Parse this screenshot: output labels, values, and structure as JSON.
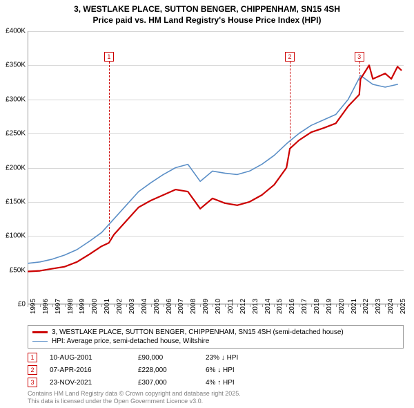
{
  "title_line1": "3, WESTLAKE PLACE, SUTTON BENGER, CHIPPENHAM, SN15 4SH",
  "title_line2": "Price paid vs. HM Land Registry's House Price Index (HPI)",
  "chart": {
    "type": "line",
    "background_color": "#ffffff",
    "grid_color": "#d6d6d6",
    "axis_color": "#9a9a9a",
    "x_years": [
      1995,
      1996,
      1997,
      1998,
      1999,
      2000,
      2001,
      2002,
      2003,
      2004,
      2005,
      2006,
      2007,
      2008,
      2009,
      2010,
      2011,
      2012,
      2013,
      2014,
      2015,
      2016,
      2017,
      2018,
      2019,
      2020,
      2021,
      2022,
      2023,
      2024,
      2025
    ],
    "y_ticks": [
      0,
      50000,
      100000,
      150000,
      200000,
      250000,
      300000,
      350000,
      400000
    ],
    "y_tick_labels": [
      "£0",
      "£50K",
      "£100K",
      "£150K",
      "£200K",
      "£250K",
      "£300K",
      "£350K",
      "£400K"
    ],
    "ylim": [
      0,
      400000
    ],
    "xlim": [
      1995,
      2025.5
    ],
    "series": [
      {
        "name": "hpi",
        "color": "#5b8fc7",
        "stroke_width": 1.6,
        "points": [
          [
            1995,
            60000
          ],
          [
            1996,
            62000
          ],
          [
            1997,
            66000
          ],
          [
            1998,
            72000
          ],
          [
            1999,
            80000
          ],
          [
            2000,
            92000
          ],
          [
            2001,
            105000
          ],
          [
            2002,
            125000
          ],
          [
            2003,
            145000
          ],
          [
            2004,
            165000
          ],
          [
            2005,
            178000
          ],
          [
            2006,
            190000
          ],
          [
            2007,
            200000
          ],
          [
            2008,
            205000
          ],
          [
            2009,
            180000
          ],
          [
            2010,
            195000
          ],
          [
            2011,
            192000
          ],
          [
            2012,
            190000
          ],
          [
            2013,
            195000
          ],
          [
            2014,
            205000
          ],
          [
            2015,
            218000
          ],
          [
            2016,
            235000
          ],
          [
            2017,
            250000
          ],
          [
            2018,
            262000
          ],
          [
            2019,
            270000
          ],
          [
            2020,
            278000
          ],
          [
            2021,
            300000
          ],
          [
            2022,
            335000
          ],
          [
            2023,
            322000
          ],
          [
            2024,
            318000
          ],
          [
            2025,
            322000
          ]
        ]
      },
      {
        "name": "property",
        "color": "#cc0000",
        "stroke_width": 2.2,
        "points": [
          [
            1995,
            48000
          ],
          [
            1996,
            49000
          ],
          [
            1997,
            52000
          ],
          [
            1998,
            55000
          ],
          [
            1999,
            62000
          ],
          [
            2000,
            73000
          ],
          [
            2001,
            85000
          ],
          [
            2001.6,
            90000
          ],
          [
            2002,
            102000
          ],
          [
            2003,
            122000
          ],
          [
            2004,
            142000
          ],
          [
            2005,
            152000
          ],
          [
            2006,
            160000
          ],
          [
            2007,
            168000
          ],
          [
            2008,
            165000
          ],
          [
            2009,
            140000
          ],
          [
            2010,
            155000
          ],
          [
            2011,
            148000
          ],
          [
            2012,
            145000
          ],
          [
            2013,
            150000
          ],
          [
            2014,
            160000
          ],
          [
            2015,
            175000
          ],
          [
            2016,
            200000
          ],
          [
            2016.27,
            228000
          ],
          [
            2017,
            240000
          ],
          [
            2018,
            252000
          ],
          [
            2019,
            258000
          ],
          [
            2020,
            265000
          ],
          [
            2021,
            290000
          ],
          [
            2021.9,
            307000
          ],
          [
            2022,
            330000
          ],
          [
            2022.7,
            350000
          ],
          [
            2023,
            330000
          ],
          [
            2024,
            338000
          ],
          [
            2024.5,
            330000
          ],
          [
            2025,
            348000
          ],
          [
            2025.3,
            343000
          ]
        ]
      }
    ],
    "markers": [
      {
        "n": "1",
        "x": 2001.6,
        "top_y": 370000,
        "drop_to": 90000
      },
      {
        "n": "2",
        "x": 2016.27,
        "top_y": 370000,
        "drop_to": 228000
      },
      {
        "n": "3",
        "x": 2021.9,
        "top_y": 370000,
        "drop_to": 307000
      }
    ]
  },
  "legend": [
    {
      "swatch": "#cc0000",
      "stroke": 2.2,
      "label": "3, WESTLAKE PLACE, SUTTON BENGER, CHIPPENHAM, SN15 4SH (semi-detached house)"
    },
    {
      "swatch": "#5b8fc7",
      "stroke": 1.6,
      "label": "HPI: Average price, semi-detached house, Wiltshire"
    }
  ],
  "sales": [
    {
      "n": "1",
      "date": "10-AUG-2001",
      "price": "£90,000",
      "diff": "23% ↓ HPI"
    },
    {
      "n": "2",
      "date": "07-APR-2016",
      "price": "£228,000",
      "diff": "6% ↓ HPI"
    },
    {
      "n": "3",
      "date": "23-NOV-2021",
      "price": "£307,000",
      "diff": "4% ↑ HPI"
    }
  ],
  "footer_line1": "Contains HM Land Registry data © Crown copyright and database right 2025.",
  "footer_line2": "This data is licensed under the Open Government Licence v3.0."
}
